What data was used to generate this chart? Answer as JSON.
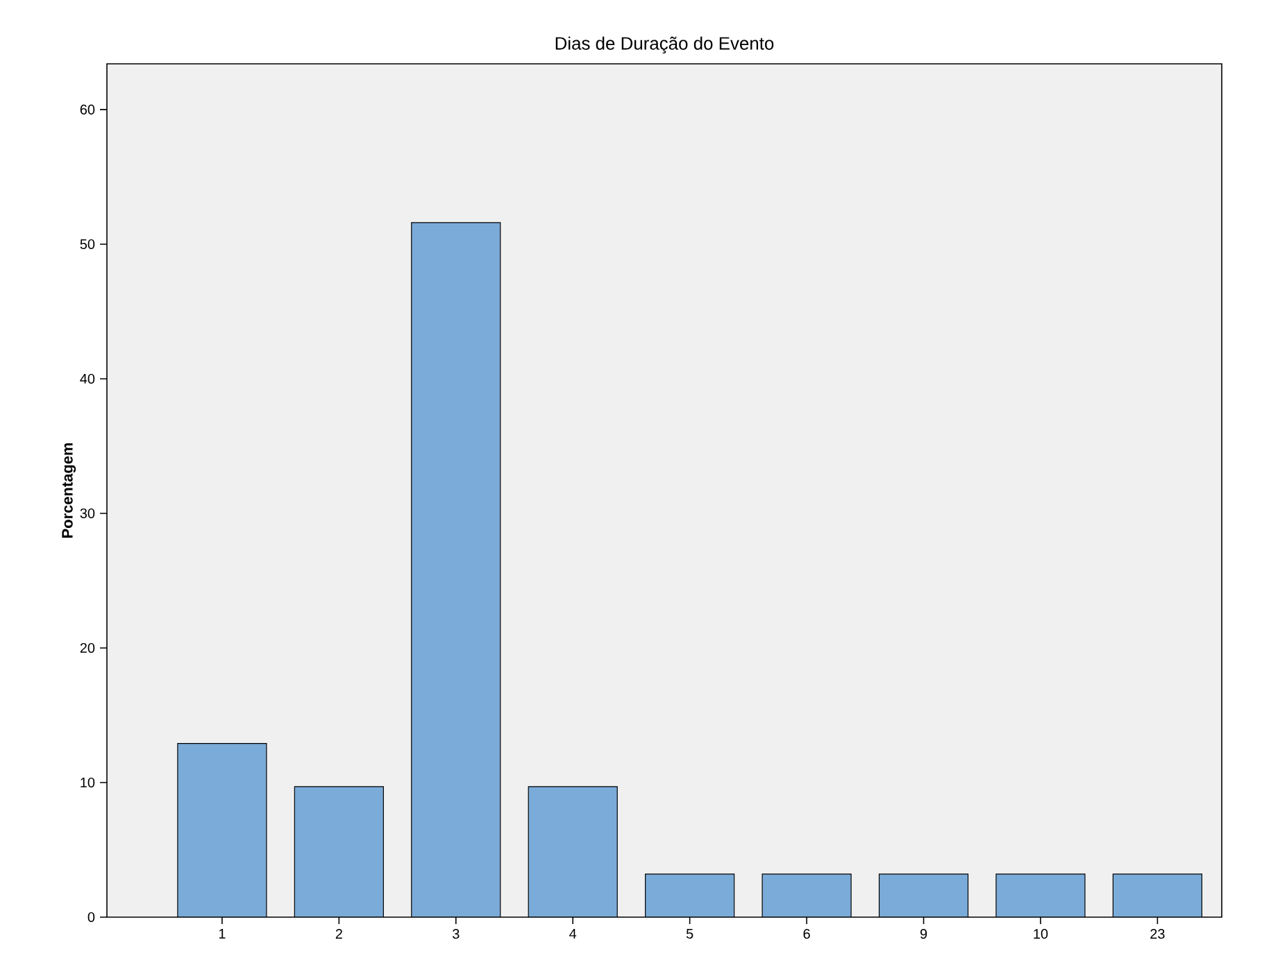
{
  "chart_data": {
    "type": "bar",
    "title": "Dias de Duração do Evento",
    "ylabel": "Porcentagem",
    "categories": [
      "1",
      "2",
      "3",
      "4",
      "5",
      "6",
      "9",
      "10",
      "23"
    ],
    "values": [
      12.9,
      9.7,
      51.6,
      9.7,
      3.2,
      3.2,
      3.2,
      3.2,
      3.2
    ],
    "color": "#7babd8",
    "ylim": [
      0,
      63.4
    ],
    "yticks": [
      0,
      10,
      20,
      30,
      40,
      50,
      60
    ],
    "grid": false
  }
}
